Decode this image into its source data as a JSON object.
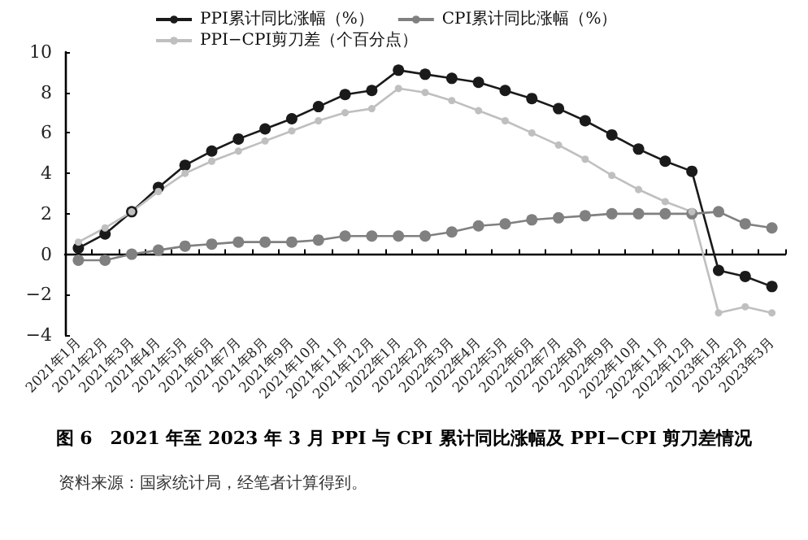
{
  "chart_data": {
    "type": "line",
    "title": "图 6　2021 年至 2023 年 3 月 PPI 与 CPI 累计同比涨幅及 PPI−CPI 剪刀差情况",
    "annotations": [
      "资料来源：国家统计局，经笔者计算得到。"
    ],
    "categories": [
      "2021年1月",
      "2021年2月",
      "2021年3月",
      "2021年4月",
      "2021年5月",
      "2021年6月",
      "2021年7月",
      "2021年8月",
      "2021年9月",
      "2021年10月",
      "2021年11月",
      "2021年12月",
      "2022年1月",
      "2022年2月",
      "2022年3月",
      "2022年4月",
      "2022年5月",
      "2022年6月",
      "2022年7月",
      "2022年8月",
      "2022年9月",
      "2022年10月",
      "2022年11月",
      "2022年12月",
      "2023年1月",
      "2023年2月",
      "2023年3月"
    ],
    "series": [
      {
        "name": "PPI累计同比涨幅（%）",
        "color": "#1a1a1a",
        "values": [
          0.3,
          1.0,
          2.1,
          3.3,
          4.4,
          5.1,
          5.7,
          6.2,
          6.7,
          7.3,
          7.9,
          8.1,
          9.1,
          8.9,
          8.7,
          8.5,
          8.1,
          7.7,
          7.2,
          6.6,
          5.9,
          5.2,
          4.6,
          4.1,
          -0.8,
          -1.1,
          -1.6
        ]
      },
      {
        "name": "CPI累计同比涨幅（%）",
        "color": "#808080",
        "values": [
          -0.3,
          -0.3,
          0,
          0.2,
          0.4,
          0.5,
          0.6,
          0.6,
          0.6,
          0.7,
          0.9,
          0.9,
          0.9,
          0.9,
          1.1,
          1.4,
          1.5,
          1.7,
          1.8,
          1.9,
          2.0,
          2.0,
          2.0,
          2.0,
          2.1,
          1.5,
          1.3
        ]
      },
      {
        "name": "PPI−CPI剪刀差（个百分点）",
        "color": "#bfbfbf",
        "values": [
          0.6,
          1.3,
          2.1,
          3.1,
          4.0,
          4.6,
          5.1,
          5.6,
          6.1,
          6.6,
          7.0,
          7.2,
          8.2,
          8.0,
          7.6,
          7.1,
          6.6,
          6.0,
          5.4,
          4.7,
          3.9,
          3.2,
          2.6,
          2.1,
          -2.9,
          -2.6,
          -2.9
        ]
      }
    ],
    "ylim": [
      -4,
      10
    ],
    "yticks": [
      -4,
      -2,
      0,
      2,
      4,
      6,
      8,
      10
    ],
    "legend": "top",
    "marker": "circle",
    "line_style": "solid"
  }
}
